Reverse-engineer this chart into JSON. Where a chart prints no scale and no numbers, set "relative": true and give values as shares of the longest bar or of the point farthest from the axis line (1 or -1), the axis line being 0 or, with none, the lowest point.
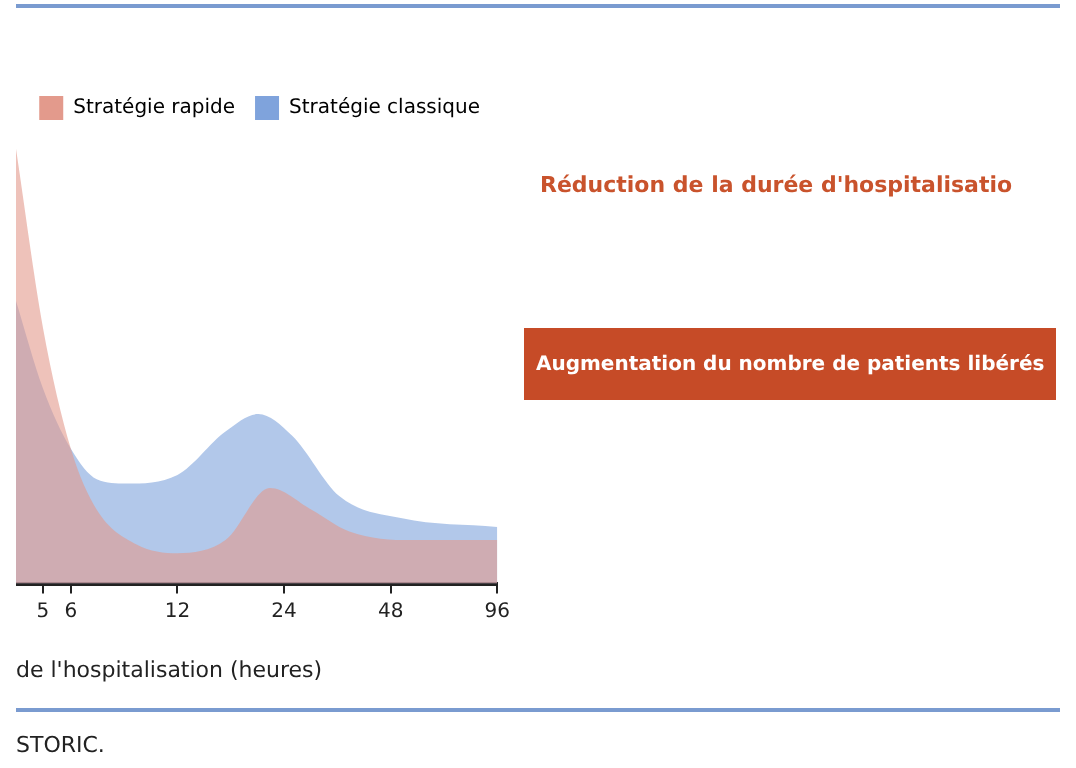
{
  "chart_data": {
    "type": "area",
    "relative": true,
    "xlabel": "de l'hospitalisation (heures)",
    "log": "x",
    "xlim": [
      4.2,
      96
    ],
    "xticks": [
      5,
      6,
      12,
      24,
      48,
      96
    ],
    "grid": false,
    "legend": "top right",
    "series": [
      {
        "name": "Stratégie rapide",
        "color": "#e39a8c",
        "x": [
          4.2,
          5,
          6,
          7.1,
          9.2,
          12,
          16.4,
          21.9,
          28.7,
          36.7,
          55,
          96
        ],
        "values": [
          1,
          0.59,
          0.31,
          0.17,
          0.09,
          0.07,
          0.1,
          0.22,
          0.17,
          0.12,
          0.1,
          0.1
        ]
      },
      {
        "name": "Stratégie classique",
        "color": "#7fa3dc",
        "x": [
          4.2,
          5,
          6,
          7.1,
          8.6,
          12,
          16.4,
          20.3,
          25.3,
          34.5,
          51.7,
          96
        ],
        "values": [
          0.65,
          0.45,
          0.31,
          0.24,
          0.23,
          0.25,
          0.35,
          0.39,
          0.34,
          0.2,
          0.15,
          0.13
        ]
      }
    ],
    "annotations": [
      "Réduction de la durée d'hospitalisatio",
      "Augmentation du nombre de patients libérés",
      "STORIC."
    ]
  }
}
